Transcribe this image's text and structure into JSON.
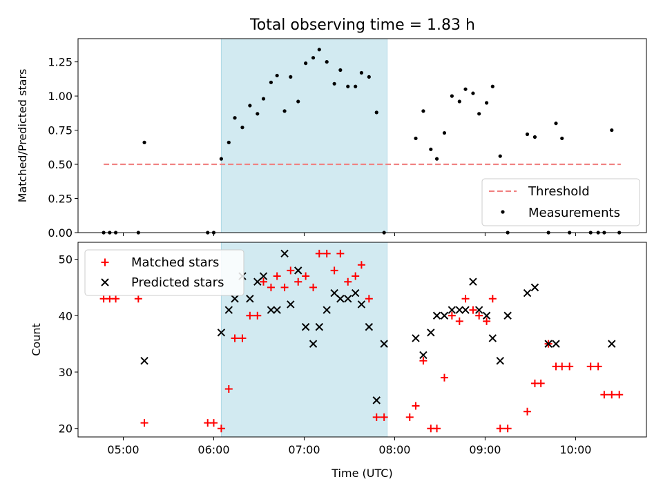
{
  "title": "Total observing time = 1.83 h",
  "colors": {
    "threshold": "#f08080",
    "measurements": "#000000",
    "matched": "#ff0000",
    "predicted": "#000000",
    "span": "#add8e6"
  },
  "chart_data": [
    {
      "type": "scatter",
      "ylabel": "Matched/Predicted stars",
      "ylim": [
        0,
        1.42
      ],
      "yticks": [
        "0.00",
        "0.25",
        "0.50",
        "0.75",
        "1.00",
        "1.25"
      ],
      "xlim": [
        "04:30",
        "10:47"
      ],
      "shaded_span": [
        "06:05",
        "07:55"
      ],
      "legend": {
        "position": "lower right",
        "entries": [
          "Threshold",
          "Measurements"
        ]
      },
      "series": [
        {
          "name": "Threshold",
          "style": "dashed-line",
          "x": [
            "04:47",
            "10:30"
          ],
          "y": [
            0.5,
            0.5
          ]
        },
        {
          "name": "Measurements",
          "style": "dot",
          "x": [
            "04:47",
            "04:51",
            "04:55",
            "05:10",
            "05:14",
            "05:56",
            "06:00",
            "06:05",
            "06:10",
            "06:14",
            "06:19",
            "06:24",
            "06:29",
            "06:33",
            "06:38",
            "06:42",
            "06:47",
            "06:51",
            "06:56",
            "07:01",
            "07:06",
            "07:10",
            "07:15",
            "07:20",
            "07:24",
            "07:29",
            "07:34",
            "07:38",
            "07:43",
            "07:48",
            "07:53",
            "08:14",
            "08:19",
            "08:24",
            "08:28",
            "08:33",
            "08:38",
            "08:43",
            "08:47",
            "08:52",
            "08:56",
            "09:01",
            "09:05",
            "09:10",
            "09:15",
            "09:28",
            "09:33",
            "09:42",
            "09:47",
            "09:51",
            "09:56",
            "10:10",
            "10:15",
            "10:19",
            "10:24",
            "10:29"
          ],
          "y": [
            0,
            0,
            0,
            0,
            0.66,
            0,
            0,
            0.54,
            0.66,
            0.84,
            0.77,
            0.93,
            0.87,
            0.98,
            1.1,
            1.15,
            0.89,
            1.14,
            0.96,
            1.24,
            1.28,
            1.34,
            1.25,
            1.09,
            1.19,
            1.07,
            1.07,
            1.17,
            1.14,
            0.88,
            0,
            0.69,
            0.89,
            0.61,
            0.54,
            0.73,
            1.0,
            0.96,
            1.05,
            1.02,
            0.87,
            0.95,
            1.07,
            0.56,
            0,
            0.72,
            0.7,
            0,
            0.8,
            0.69,
            0,
            0,
            0,
            0,
            0.75,
            0
          ]
        }
      ]
    },
    {
      "type": "scatter",
      "xlabel": "Time (UTC)",
      "ylabel": "Count",
      "ylim": [
        18.5,
        53
      ],
      "yticks": [
        "20",
        "30",
        "40",
        "50"
      ],
      "xticks": [
        "05:00",
        "06:00",
        "07:00",
        "08:00",
        "09:00",
        "10:00"
      ],
      "xlim": [
        "04:30",
        "10:47"
      ],
      "shaded_span": [
        "06:05",
        "07:55"
      ],
      "legend": {
        "position": "upper left",
        "entries": [
          "Matched stars",
          "Predicted stars"
        ]
      },
      "series": [
        {
          "name": "Matched stars",
          "marker": "plus",
          "x": [
            "04:47",
            "04:51",
            "04:55",
            "05:10",
            "05:14",
            "05:56",
            "06:00",
            "06:05",
            "06:10",
            "06:14",
            "06:19",
            "06:24",
            "06:29",
            "06:33",
            "06:38",
            "06:42",
            "06:47",
            "06:51",
            "06:56",
            "07:01",
            "07:06",
            "07:10",
            "07:15",
            "07:20",
            "07:24",
            "07:29",
            "07:34",
            "07:38",
            "07:43",
            "07:48",
            "07:53",
            "08:10",
            "08:14",
            "08:19",
            "08:24",
            "08:28",
            "08:33",
            "08:38",
            "08:43",
            "08:47",
            "08:52",
            "08:56",
            "09:01",
            "09:05",
            "09:10",
            "09:15",
            "09:28",
            "09:33",
            "09:37",
            "09:42",
            "09:47",
            "09:51",
            "09:56",
            "10:10",
            "10:15",
            "10:19",
            "10:24",
            "10:29"
          ],
          "y": [
            43,
            43,
            43,
            43,
            21,
            21,
            21,
            20,
            27,
            36,
            36,
            40,
            40,
            46,
            45,
            47,
            45,
            48,
            46,
            47,
            45,
            51,
            51,
            48,
            51,
            46,
            47,
            49,
            43,
            22,
            22,
            22,
            24,
            32,
            20,
            20,
            29,
            40,
            39,
            43,
            41,
            40,
            39,
            43,
            20,
            20,
            23,
            28,
            28,
            35,
            31,
            31,
            31,
            31,
            31,
            26,
            26,
            26
          ]
        },
        {
          "name": "Predicted stars",
          "marker": "x",
          "x": [
            "05:14",
            "06:05",
            "06:10",
            "06:14",
            "06:19",
            "06:24",
            "06:29",
            "06:33",
            "06:38",
            "06:42",
            "06:47",
            "06:51",
            "06:56",
            "07:01",
            "07:06",
            "07:10",
            "07:15",
            "07:20",
            "07:24",
            "07:29",
            "07:34",
            "07:38",
            "07:43",
            "07:48",
            "07:53",
            "08:14",
            "08:19",
            "08:24",
            "08:28",
            "08:33",
            "08:38",
            "08:43",
            "08:47",
            "08:52",
            "08:56",
            "09:01",
            "09:05",
            "09:10",
            "09:15",
            "09:28",
            "09:33",
            "09:42",
            "09:47",
            "10:24"
          ],
          "y": [
            32,
            37,
            41,
            43,
            47,
            43,
            46,
            47,
            41,
            41,
            51,
            42,
            48,
            38,
            35,
            38,
            41,
            44,
            43,
            43,
            44,
            42,
            38,
            25,
            35,
            36,
            33,
            37,
            40,
            40,
            41,
            41,
            41,
            46,
            41,
            40,
            36,
            32,
            40,
            44,
            45,
            35,
            35,
            35
          ]
        }
      ]
    }
  ]
}
